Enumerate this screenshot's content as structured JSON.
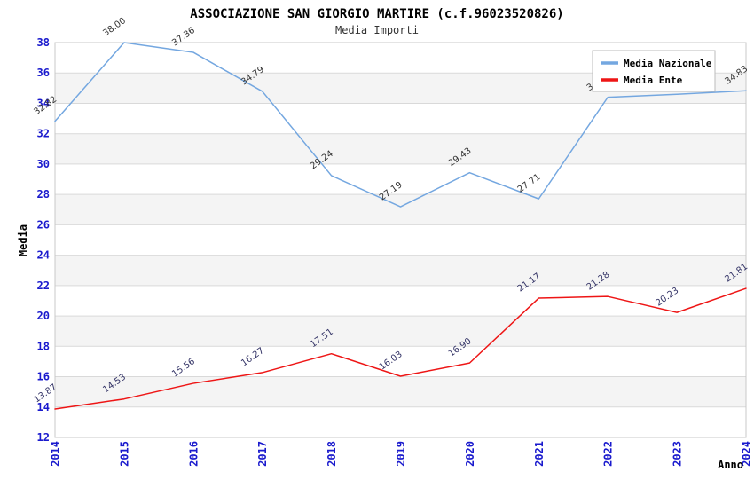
{
  "title": "ASSOCIAZIONE SAN GIORGIO MARTIRE (c.f.96023520826)",
  "subtitle": "Media Importi",
  "chart_data": {
    "type": "line",
    "x": [
      2014,
      2015,
      2016,
      2017,
      2018,
      2019,
      2020,
      2021,
      2022,
      2023,
      2024
    ],
    "xlabel": "Anno",
    "ylabel": "Media",
    "ylim": [
      12,
      38
    ],
    "ytick_step": 2,
    "grid": "horizontal",
    "alternating_bands": true,
    "legend_position": "top-right-inside",
    "series": [
      {
        "name": "Media Nazionale",
        "color": "#74a7e0",
        "label_color": "#333333",
        "values": [
          32.82,
          38.0,
          37.36,
          34.79,
          29.24,
          27.19,
          29.43,
          27.71,
          34.4,
          34.6,
          34.83
        ],
        "note": "2022 and 2023 point labels are covered by the legend box; those two values are estimated from the line position"
      },
      {
        "name": "Media Ente",
        "color": "#ee1515",
        "label_color": "#333366",
        "values": [
          13.87,
          14.53,
          15.56,
          16.27,
          17.51,
          16.03,
          16.9,
          21.17,
          21.28,
          20.23,
          21.81
        ]
      }
    ]
  },
  "colors": {
    "axis_tick_text": "#1a1acd",
    "band_fill": "#f4f4f4",
    "gridline": "#d9d9d9",
    "plot_border": "#c8c8c8",
    "legend_border": "#bbbbbb",
    "background": "#ffffff"
  }
}
